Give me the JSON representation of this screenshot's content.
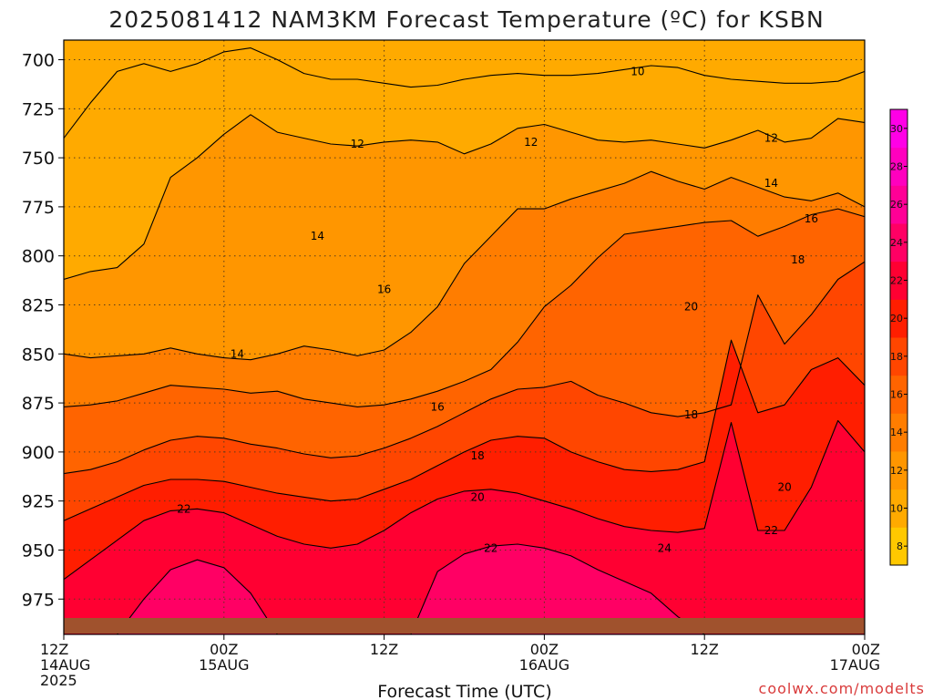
{
  "title": "2025081412 NAM3KM Forecast Temperature (ºC) for KSBN",
  "xlabel": "Forecast Time (UTC)",
  "credit": "coolwx.com/modelts",
  "x_ticks": [
    {
      "top": "12Z",
      "mid": "14AUG",
      "bottom": "2025"
    },
    {
      "top": "00Z",
      "mid": "15AUG",
      "bottom": ""
    },
    {
      "top": "12Z",
      "mid": "",
      "bottom": ""
    },
    {
      "top": "00Z",
      "mid": "16AUG",
      "bottom": ""
    },
    {
      "top": "12Z",
      "mid": "",
      "bottom": ""
    },
    {
      "top": "00Z",
      "mid": "17AUG",
      "bottom": ""
    }
  ],
  "y_ticks": [
    "700",
    "725",
    "750",
    "775",
    "800",
    "825",
    "850",
    "875",
    "900",
    "925",
    "950",
    "975"
  ],
  "colorbar": {
    "labels": [
      "8",
      "10",
      "12",
      "14",
      "16",
      "18",
      "20",
      "22",
      "24",
      "26",
      "28",
      "30"
    ],
    "colors": [
      "#ffc800",
      "#ffaa00",
      "#ff9600",
      "#ff7d00",
      "#ff6400",
      "#ff4600",
      "#ff1e00",
      "#ff0032",
      "#ff0064",
      "#ff0096",
      "#ff00be",
      "#ff00e6"
    ]
  },
  "contour_labels": [
    {
      "text": "10",
      "t": 43,
      "p": 706
    },
    {
      "text": "12",
      "t": 22,
      "p": 743
    },
    {
      "text": "12",
      "t": 35,
      "p": 742
    },
    {
      "text": "12",
      "t": 53,
      "p": 740
    },
    {
      "text": "12",
      "t": 66,
      "p": 741
    },
    {
      "text": "14",
      "t": 19,
      "p": 790
    },
    {
      "text": "14",
      "t": 53,
      "p": 763
    },
    {
      "text": "14",
      "t": 67,
      "p": 773
    },
    {
      "text": "14",
      "t": 13,
      "p": 850
    },
    {
      "text": "16",
      "t": 24,
      "p": 817
    },
    {
      "text": "16",
      "t": 56,
      "p": 781
    },
    {
      "text": "16",
      "t": 28,
      "p": 877
    },
    {
      "text": "18",
      "t": 55,
      "p": 802
    },
    {
      "text": "18",
      "t": 66,
      "p": 819
    },
    {
      "text": "18",
      "t": 47,
      "p": 881
    },
    {
      "text": "18",
      "t": 31,
      "p": 902
    },
    {
      "text": "20",
      "t": 47,
      "p": 826
    },
    {
      "text": "20",
      "t": 61,
      "p": 829
    },
    {
      "text": "20",
      "t": 31,
      "p": 923
    },
    {
      "text": "20",
      "t": 54,
      "p": 918
    },
    {
      "text": "22",
      "t": 62,
      "p": 885
    },
    {
      "text": "22",
      "t": 9,
      "p": 929
    },
    {
      "text": "22",
      "t": 32,
      "p": 949
    },
    {
      "text": "22",
      "t": 53,
      "p": 940
    },
    {
      "text": "24",
      "t": 45,
      "p": 949
    }
  ],
  "chart_data": {
    "type": "heatmap",
    "title": "2025081412 NAM3KM Forecast Temperature (ºC) for KSBN",
    "xlabel": "Forecast Time (UTC)",
    "ylabel": "",
    "x_unit": "forecast hour from 2025-08-14 12Z",
    "xlim": [
      0,
      60
    ],
    "ylim_pressure_hPa": [
      690,
      993
    ],
    "y_reversed": true,
    "grid": true,
    "colorbar_range_C": [
      7,
      31
    ],
    "colorbar_step_C": 2,
    "pressure_levels_hPa": [
      700,
      725,
      750,
      775,
      800,
      825,
      850,
      875,
      900,
      925,
      950,
      975
    ],
    "contour_lines_C": [
      {
        "level": 10,
        "points": [
          [
            0,
            740
          ],
          [
            2,
            722
          ],
          [
            4,
            706
          ],
          [
            6,
            702
          ],
          [
            8,
            706
          ],
          [
            10,
            702
          ],
          [
            12,
            696
          ],
          [
            14,
            694
          ],
          [
            16,
            700
          ],
          [
            18,
            707
          ],
          [
            20,
            710
          ],
          [
            22,
            710
          ],
          [
            24,
            712
          ],
          [
            26,
            714
          ],
          [
            28,
            713
          ],
          [
            30,
            710
          ],
          [
            32,
            708
          ],
          [
            34,
            707
          ],
          [
            36,
            708
          ],
          [
            38,
            708
          ],
          [
            40,
            707
          ],
          [
            42,
            705
          ],
          [
            44,
            703
          ],
          [
            46,
            704
          ],
          [
            48,
            708
          ],
          [
            50,
            710
          ],
          [
            52,
            711
          ],
          [
            54,
            712
          ],
          [
            56,
            712
          ],
          [
            58,
            711
          ],
          [
            60,
            706
          ]
        ]
      },
      {
        "level": 12,
        "points": [
          [
            0,
            812
          ],
          [
            2,
            808
          ],
          [
            4,
            806
          ],
          [
            6,
            794
          ],
          [
            8,
            760
          ],
          [
            10,
            750
          ],
          [
            12,
            738
          ],
          [
            14,
            728
          ],
          [
            16,
            737
          ],
          [
            18,
            740
          ],
          [
            20,
            743
          ],
          [
            22,
            744
          ],
          [
            24,
            742
          ],
          [
            26,
            741
          ],
          [
            28,
            742
          ],
          [
            30,
            748
          ],
          [
            32,
            743
          ],
          [
            34,
            735
          ],
          [
            36,
            733
          ],
          [
            38,
            737
          ],
          [
            40,
            741
          ],
          [
            42,
            742
          ],
          [
            44,
            741
          ],
          [
            46,
            743
          ],
          [
            48,
            745
          ],
          [
            50,
            741
          ],
          [
            52,
            736
          ],
          [
            54,
            742
          ],
          [
            56,
            740
          ],
          [
            58,
            730
          ],
          [
            60,
            732
          ]
        ]
      },
      {
        "level": 14,
        "points": [
          [
            0,
            850
          ],
          [
            2,
            852
          ],
          [
            4,
            851
          ],
          [
            6,
            850
          ],
          [
            8,
            847
          ],
          [
            10,
            850
          ],
          [
            12,
            852
          ],
          [
            14,
            853
          ],
          [
            16,
            850
          ],
          [
            18,
            846
          ],
          [
            20,
            848
          ],
          [
            22,
            851
          ],
          [
            24,
            848
          ],
          [
            26,
            839
          ],
          [
            28,
            826
          ],
          [
            30,
            804
          ],
          [
            32,
            790
          ],
          [
            34,
            776
          ],
          [
            36,
            776
          ],
          [
            38,
            771
          ],
          [
            40,
            767
          ],
          [
            42,
            763
          ],
          [
            44,
            757
          ],
          [
            46,
            762
          ],
          [
            48,
            766
          ],
          [
            50,
            760
          ],
          [
            52,
            765
          ],
          [
            54,
            770
          ],
          [
            56,
            772
          ],
          [
            58,
            768
          ],
          [
            60,
            775
          ]
        ]
      },
      {
        "level": 16,
        "points": [
          [
            0,
            877
          ],
          [
            2,
            876
          ],
          [
            4,
            874
          ],
          [
            6,
            870
          ],
          [
            8,
            866
          ],
          [
            10,
            867
          ],
          [
            12,
            868
          ],
          [
            14,
            870
          ],
          [
            16,
            869
          ],
          [
            18,
            873
          ],
          [
            20,
            875
          ],
          [
            22,
            877
          ],
          [
            24,
            876
          ],
          [
            26,
            873
          ],
          [
            28,
            869
          ],
          [
            30,
            864
          ],
          [
            32,
            858
          ],
          [
            34,
            844
          ],
          [
            36,
            826
          ],
          [
            38,
            815
          ],
          [
            40,
            801
          ],
          [
            42,
            789
          ],
          [
            44,
            787
          ],
          [
            46,
            785
          ],
          [
            48,
            783
          ],
          [
            50,
            782
          ],
          [
            52,
            790
          ],
          [
            54,
            785
          ],
          [
            56,
            779
          ],
          [
            58,
            776
          ],
          [
            60,
            780
          ]
        ]
      },
      {
        "level": 18,
        "points": [
          [
            0,
            911
          ],
          [
            2,
            909
          ],
          [
            4,
            905
          ],
          [
            6,
            899
          ],
          [
            8,
            894
          ],
          [
            10,
            892
          ],
          [
            12,
            893
          ],
          [
            14,
            896
          ],
          [
            16,
            898
          ],
          [
            18,
            901
          ],
          [
            20,
            903
          ],
          [
            22,
            902
          ],
          [
            24,
            898
          ],
          [
            26,
            893
          ],
          [
            28,
            887
          ],
          [
            30,
            880
          ],
          [
            32,
            873
          ],
          [
            34,
            868
          ],
          [
            36,
            867
          ],
          [
            38,
            864
          ],
          [
            40,
            871
          ],
          [
            42,
            875
          ],
          [
            44,
            880
          ],
          [
            46,
            882
          ],
          [
            48,
            880
          ],
          [
            50,
            876
          ],
          [
            52,
            820
          ],
          [
            54,
            845
          ],
          [
            56,
            830
          ],
          [
            58,
            812
          ],
          [
            60,
            803
          ]
        ]
      },
      {
        "level": 20,
        "points": [
          [
            0,
            935
          ],
          [
            2,
            929
          ],
          [
            4,
            923
          ],
          [
            6,
            917
          ],
          [
            8,
            914
          ],
          [
            10,
            914
          ],
          [
            12,
            915
          ],
          [
            14,
            918
          ],
          [
            16,
            921
          ],
          [
            18,
            923
          ],
          [
            20,
            925
          ],
          [
            22,
            924
          ],
          [
            24,
            919
          ],
          [
            26,
            914
          ],
          [
            28,
            907
          ],
          [
            30,
            900
          ],
          [
            32,
            894
          ],
          [
            34,
            892
          ],
          [
            36,
            893
          ],
          [
            38,
            900
          ],
          [
            40,
            905
          ],
          [
            42,
            909
          ],
          [
            44,
            910
          ],
          [
            46,
            909
          ],
          [
            48,
            905
          ],
          [
            50,
            843
          ],
          [
            52,
            880
          ],
          [
            54,
            876
          ],
          [
            56,
            858
          ],
          [
            58,
            852
          ],
          [
            60,
            866
          ]
        ]
      },
      {
        "level": 22,
        "points": [
          [
            0,
            965
          ],
          [
            2,
            955
          ],
          [
            4,
            945
          ],
          [
            6,
            935
          ],
          [
            8,
            930
          ],
          [
            10,
            929
          ],
          [
            12,
            931
          ],
          [
            14,
            937
          ],
          [
            16,
            943
          ],
          [
            18,
            947
          ],
          [
            20,
            949
          ],
          [
            22,
            947
          ],
          [
            24,
            940
          ],
          [
            26,
            931
          ],
          [
            28,
            924
          ],
          [
            30,
            920
          ],
          [
            32,
            919
          ],
          [
            34,
            921
          ],
          [
            36,
            925
          ],
          [
            38,
            929
          ],
          [
            40,
            934
          ],
          [
            42,
            938
          ],
          [
            44,
            940
          ],
          [
            46,
            941
          ],
          [
            48,
            939
          ],
          [
            50,
            885
          ],
          [
            52,
            940
          ],
          [
            54,
            940
          ],
          [
            56,
            918
          ],
          [
            58,
            884
          ],
          [
            60,
            900
          ]
        ]
      },
      {
        "level": 24,
        "points": [
          [
            4,
            993
          ],
          [
            6,
            975
          ],
          [
            8,
            960
          ],
          [
            10,
            955
          ],
          [
            12,
            959
          ],
          [
            14,
            972
          ],
          [
            16,
            993
          ],
          [
            26,
            993
          ],
          [
            28,
            961
          ],
          [
            30,
            952
          ],
          [
            32,
            948
          ],
          [
            34,
            947
          ],
          [
            36,
            949
          ],
          [
            38,
            953
          ],
          [
            40,
            960
          ],
          [
            42,
            966
          ],
          [
            44,
            972
          ],
          [
            46,
            984
          ],
          [
            48,
            993
          ]
        ]
      }
    ]
  }
}
